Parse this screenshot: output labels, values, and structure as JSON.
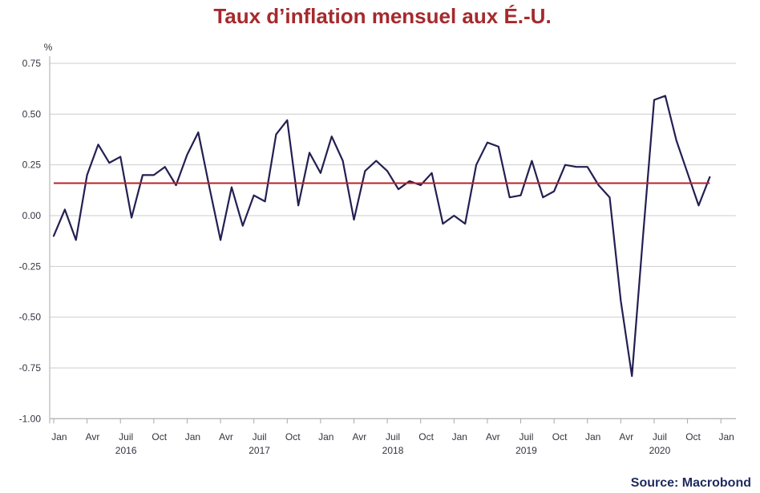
{
  "colors": {
    "title": "#a52a2d",
    "source": "#1d2a5e",
    "grid": "#cdcdcd",
    "axis": "#a8a8a8",
    "tick_text": "#33333f"
  },
  "source": "Source: Macrobond",
  "chart_data": {
    "type": "line",
    "title": "Taux d’inflation mensuel aux É.-U.",
    "ylabel": "%",
    "ylim": [
      -1.0,
      0.75
    ],
    "ytick_labels": [
      "0.75",
      "0.50",
      "0.25",
      "0.00",
      "-0.25",
      "-0.50",
      "-0.75",
      "-1.00"
    ],
    "xtick_labels": [
      "Jan",
      "Avr",
      "Juil",
      "Oct",
      "Jan",
      "Avr",
      "Juil",
      "Oct",
      "Jan",
      "Avr",
      "Juil",
      "Oct",
      "Jan",
      "Avr",
      "Juil",
      "Oct",
      "Jan",
      "Avr",
      "Juil",
      "Oct",
      "Jan"
    ],
    "xtick_year_labels": [
      "2016",
      "2017",
      "2018",
      "2019",
      "2020"
    ],
    "grid": true,
    "legend": false,
    "x": [
      "2015-12",
      "2016-01",
      "2016-02",
      "2016-03",
      "2016-04",
      "2016-05",
      "2016-06",
      "2016-07",
      "2016-08",
      "2016-09",
      "2016-10",
      "2016-11",
      "2016-12",
      "2017-01",
      "2017-02",
      "2017-03",
      "2017-04",
      "2017-05",
      "2017-06",
      "2017-07",
      "2017-08",
      "2017-09",
      "2017-10",
      "2017-11",
      "2017-12",
      "2018-01",
      "2018-02",
      "2018-03",
      "2018-04",
      "2018-05",
      "2018-06",
      "2018-07",
      "2018-08",
      "2018-09",
      "2018-10",
      "2018-11",
      "2018-12",
      "2019-01",
      "2019-02",
      "2019-03",
      "2019-04",
      "2019-05",
      "2019-06",
      "2019-07",
      "2019-08",
      "2019-09",
      "2019-10",
      "2019-11",
      "2019-12",
      "2020-01",
      "2020-02",
      "2020-03",
      "2020-04",
      "2020-05",
      "2020-06",
      "2020-07",
      "2020-08",
      "2020-09",
      "2020-10",
      "2020-11"
    ],
    "series": [
      {
        "color": "#221f52",
        "values": [
          -0.1,
          0.03,
          -0.12,
          0.2,
          0.35,
          0.26,
          0.29,
          -0.01,
          0.2,
          0.2,
          0.24,
          0.15,
          0.3,
          0.41,
          0.14,
          -0.12,
          0.14,
          -0.05,
          0.1,
          0.07,
          0.4,
          0.47,
          0.05,
          0.31,
          0.21,
          0.39,
          0.27,
          -0.02,
          0.22,
          0.27,
          0.22,
          0.13,
          0.17,
          0.15,
          0.21,
          -0.04,
          0.0,
          -0.04,
          0.25,
          0.36,
          0.34,
          0.09,
          0.1,
          0.27,
          0.09,
          0.12,
          0.25,
          0.24,
          0.24,
          0.15,
          0.09,
          -0.42,
          -0.79,
          -0.1,
          0.57,
          0.59,
          0.37,
          0.21,
          0.05,
          0.19
        ]
      }
    ],
    "reference_lines": [
      {
        "y": 0.16,
        "color": "#b3262b"
      }
    ]
  }
}
